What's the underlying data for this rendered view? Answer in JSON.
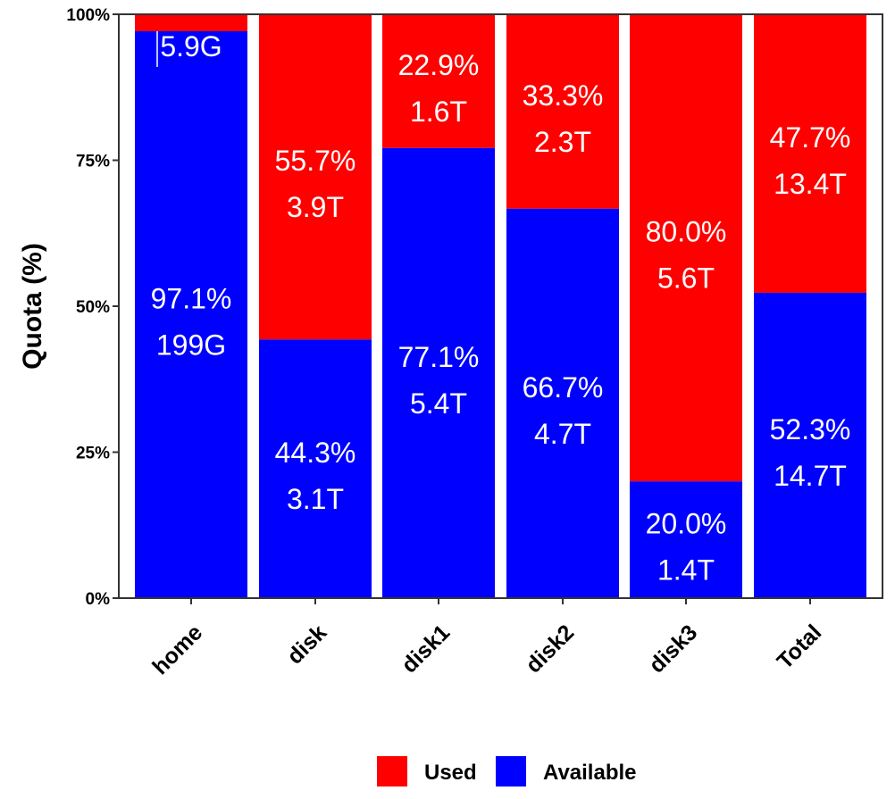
{
  "chart_data": {
    "type": "bar",
    "stacked": true,
    "percent": true,
    "title": "",
    "xlabel": "",
    "ylabel": "Quota (%)",
    "ylim": [
      0,
      100
    ],
    "y_ticks": [
      0,
      25,
      50,
      75,
      100
    ],
    "y_tick_labels": [
      "0%",
      "25%",
      "50%",
      "75%",
      "100%"
    ],
    "categories": [
      "home",
      "disk",
      "disk1",
      "disk2",
      "disk3",
      "Total"
    ],
    "series": [
      {
        "name": "Used",
        "color": "#ff0000",
        "values": [
          2.9,
          55.7,
          22.9,
          33.3,
          80.0,
          47.7
        ],
        "pct_labels": [
          "",
          "55.7%",
          "22.9%",
          "33.3%",
          "80.0%",
          "47.7%"
        ],
        "size_labels": [
          "5.9G",
          "3.9T",
          "1.6T",
          "2.3T",
          "5.6T",
          "13.4T"
        ]
      },
      {
        "name": "Available",
        "color": "#0000ff",
        "values": [
          97.1,
          44.3,
          77.1,
          66.7,
          20.0,
          52.3
        ],
        "pct_labels": [
          "97.1%",
          "44.3%",
          "77.1%",
          "66.7%",
          "20.0%",
          "52.3%"
        ],
        "size_labels": [
          "199G",
          "3.1T",
          "5.4T",
          "4.7T",
          "1.4T",
          "14.7T"
        ]
      }
    ],
    "legend_position": "bottom",
    "grid": false
  }
}
